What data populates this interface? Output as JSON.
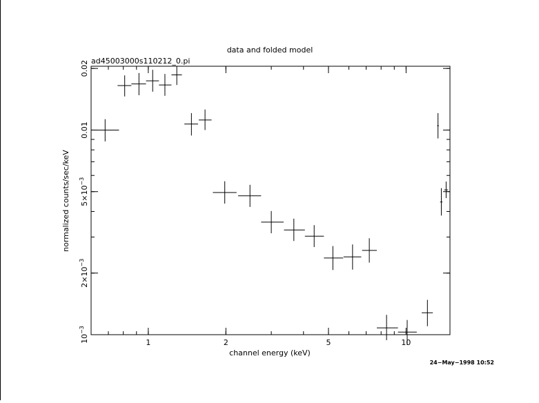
{
  "chart_data": {
    "type": "scatter",
    "title": "data and folded model",
    "subtitle": "ad45003000s110212_0.pi",
    "xlabel": "channel energy (keV)",
    "ylabel": "normalized counts/sec/keV",
    "x_scale": "log",
    "y_scale": "log",
    "xlim": [
      0.6,
      14.8
    ],
    "ylim": [
      0.001,
      0.0205
    ],
    "x_ticks": [
      {
        "value": 1,
        "label": "1"
      },
      {
        "value": 2,
        "label": "2"
      },
      {
        "value": 5,
        "label": "5"
      },
      {
        "value": 10,
        "label": "10"
      }
    ],
    "y_ticks": [
      {
        "value": 0.001,
        "label": "10",
        "exp": "−3"
      },
      {
        "value": 0.002,
        "label": "2×10",
        "exp": "−3"
      },
      {
        "value": 0.005,
        "label": "5×10",
        "exp": "−3"
      },
      {
        "value": 0.01,
        "label": "0.01",
        "exp": ""
      },
      {
        "value": 0.02,
        "label": "0.02",
        "exp": ""
      }
    ],
    "grid": false,
    "timestamp": "24−May−1998 10:52",
    "series": [
      {
        "points": [
          {
            "x": 0.68,
            "xlo": 0.6,
            "xhi": 0.77,
            "y": 0.01,
            "ylo": 0.0088,
            "yhi": 0.0113
          },
          {
            "x": 0.81,
            "xlo": 0.76,
            "xhi": 0.86,
            "y": 0.0165,
            "ylo": 0.0146,
            "yhi": 0.0185
          },
          {
            "x": 0.92,
            "xlo": 0.86,
            "xhi": 0.98,
            "y": 0.0168,
            "ylo": 0.0148,
            "yhi": 0.019
          },
          {
            "x": 1.04,
            "xlo": 0.98,
            "xhi": 1.1,
            "y": 0.0174,
            "ylo": 0.0154,
            "yhi": 0.0197
          },
          {
            "x": 1.16,
            "xlo": 1.1,
            "xhi": 1.23,
            "y": 0.0166,
            "ylo": 0.0147,
            "yhi": 0.0188
          },
          {
            "x": 1.29,
            "xlo": 1.23,
            "xhi": 1.35,
            "y": 0.0186,
            "ylo": 0.0166,
            "yhi": 0.0205
          },
          {
            "x": 1.47,
            "xlo": 1.38,
            "xhi": 1.56,
            "y": 0.0107,
            "ylo": 0.0094,
            "yhi": 0.0121
          },
          {
            "x": 1.66,
            "xlo": 1.57,
            "xhi": 1.76,
            "y": 0.0112,
            "ylo": 0.01,
            "yhi": 0.0126
          },
          {
            "x": 1.98,
            "xlo": 1.78,
            "xhi": 2.2,
            "y": 0.00495,
            "ylo": 0.00437,
            "yhi": 0.00562
          },
          {
            "x": 2.48,
            "xlo": 2.23,
            "xhi": 2.74,
            "y": 0.00477,
            "ylo": 0.00421,
            "yhi": 0.0054
          },
          {
            "x": 3.0,
            "xlo": 2.74,
            "xhi": 3.35,
            "y": 0.00355,
            "ylo": 0.00313,
            "yhi": 0.00402
          },
          {
            "x": 3.67,
            "xlo": 3.36,
            "xhi": 4.05,
            "y": 0.00325,
            "ylo": 0.00287,
            "yhi": 0.00369
          },
          {
            "x": 4.4,
            "xlo": 4.05,
            "xhi": 4.8,
            "y": 0.00303,
            "ylo": 0.00268,
            "yhi": 0.00343
          },
          {
            "x": 5.2,
            "xlo": 4.8,
            "xhi": 5.7,
            "y": 0.00237,
            "ylo": 0.00207,
            "yhi": 0.00271
          },
          {
            "x": 6.2,
            "xlo": 5.72,
            "xhi": 6.7,
            "y": 0.0024,
            "ylo": 0.00208,
            "yhi": 0.00276
          },
          {
            "x": 7.2,
            "xlo": 6.75,
            "xhi": 7.7,
            "y": 0.00258,
            "ylo": 0.00225,
            "yhi": 0.00296
          },
          {
            "x": 8.4,
            "xlo": 7.7,
            "xhi": 9.3,
            "y": 0.00108,
            "ylo": 0.00094,
            "yhi": 0.00125
          },
          {
            "x": 10.1,
            "xlo": 9.3,
            "xhi": 11.0,
            "y": 0.00103,
            "ylo": 0.00089,
            "yhi": 0.00118
          },
          {
            "x": 12.1,
            "xlo": 11.5,
            "xhi": 12.7,
            "y": 0.00128,
            "ylo": 0.0011,
            "yhi": 0.00148
          },
          {
            "x": 13.3,
            "xlo": 13.2,
            "xhi": 13.4,
            "y": 0.0105,
            "ylo": 0.0091,
            "yhi": 0.0121
          },
          {
            "x": 13.7,
            "xlo": 13.55,
            "xhi": 13.85,
            "y": 0.00445,
            "ylo": 0.00382,
            "yhi": 0.0052
          },
          {
            "x": 14.3,
            "xlo": 14.05,
            "xhi": 14.55,
            "y": 0.0051,
            "ylo": 0.00465,
            "yhi": 0.0056
          }
        ]
      }
    ]
  }
}
